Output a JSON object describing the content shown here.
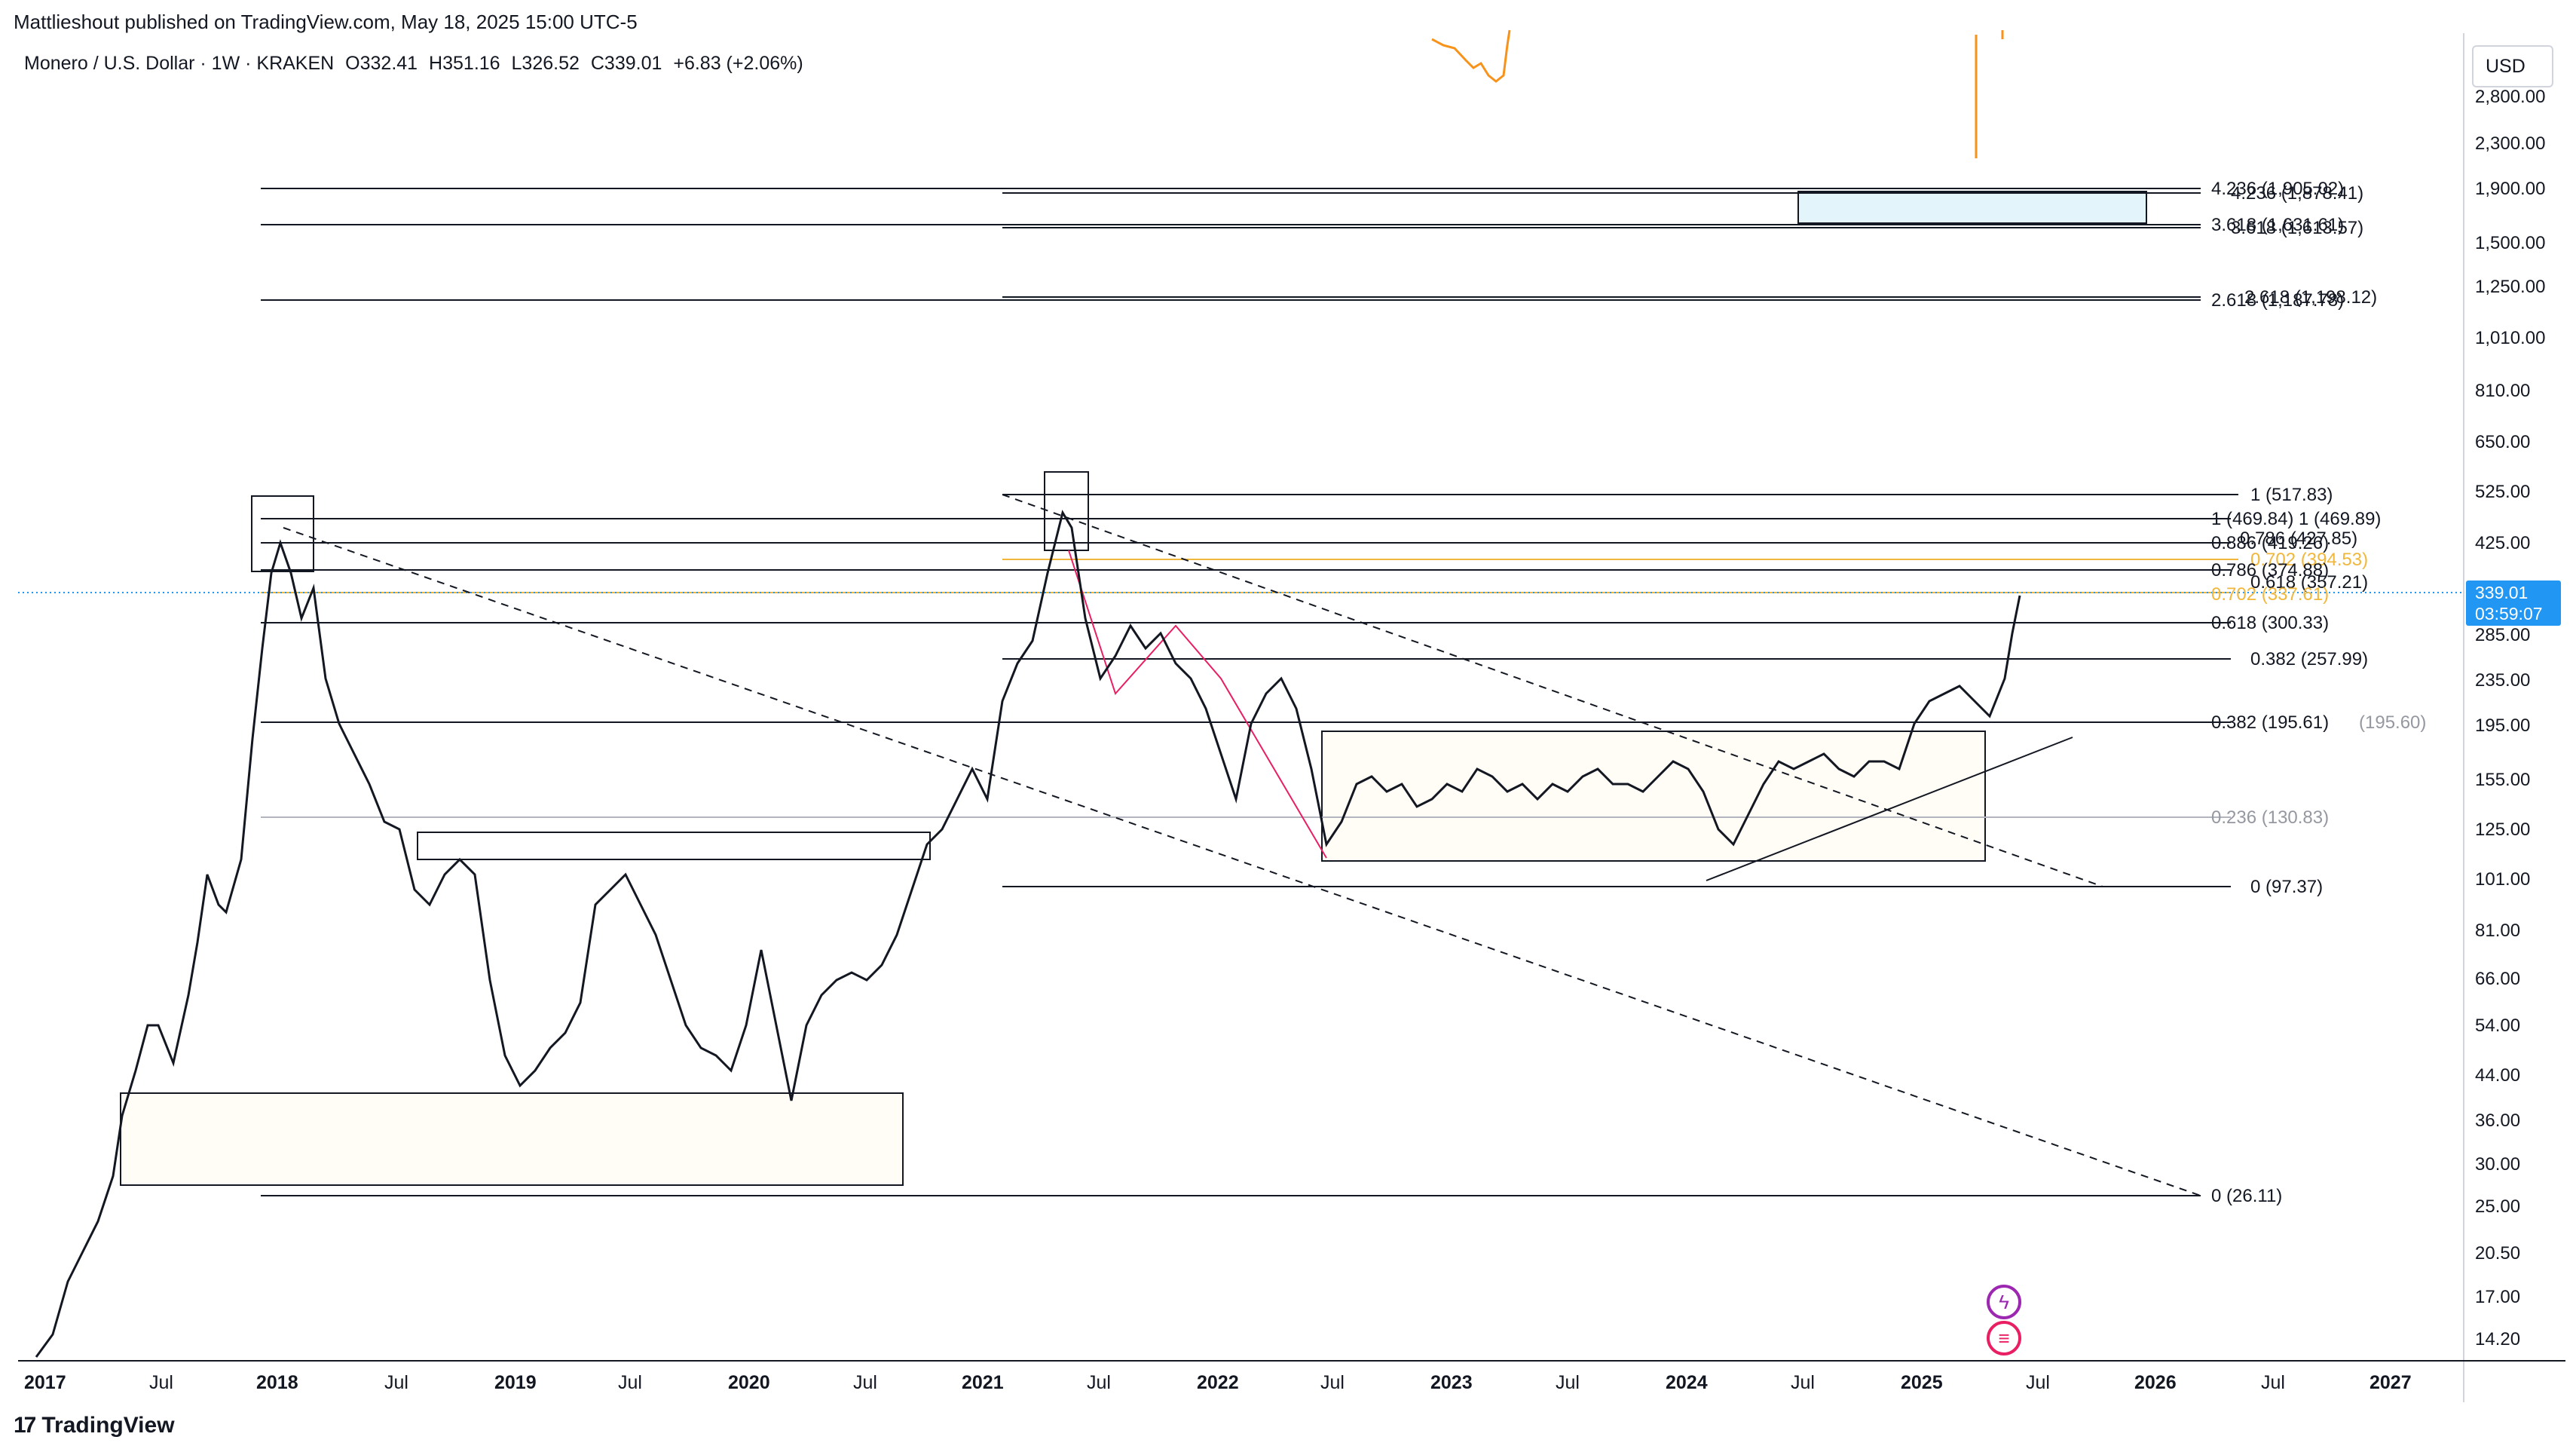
{
  "header": {
    "publisher_line": "Mattlieshout published on TradingView.com, May 18, 2025 15:00 UTC-5"
  },
  "symbol": {
    "title": "Monero / U.S. Dollar · 1W · KRAKEN",
    "open": "O332.41",
    "high": "H351.16",
    "low": "L326.52",
    "close": "C339.01",
    "change": "+6.83 (+2.06%)"
  },
  "price_axis": {
    "currency": "USD",
    "ticks": [
      "2,800.00",
      "2,300.00",
      "1,900.00",
      "1,500.00",
      "1,250.00",
      "1,010.00",
      "810.00",
      "650.00",
      "525.00",
      "425.00",
      "285.00",
      "235.00",
      "195.00",
      "155.00",
      "125.00",
      "101.00",
      "81.00",
      "66.00",
      "54.00",
      "44.00",
      "36.00",
      "30.00",
      "25.00",
      "20.50",
      "17.00",
      "14.20"
    ],
    "last_price": "339.01",
    "countdown": "03:59:07"
  },
  "time_axis": {
    "ticks": [
      "2017",
      "Jul",
      "2018",
      "Jul",
      "2019",
      "Jul",
      "2020",
      "Jul",
      "2021",
      "Jul",
      "2022",
      "Jul",
      "2023",
      "Jul",
      "2024",
      "Jul",
      "2025",
      "Jul",
      "2026",
      "Jul",
      "2027"
    ]
  },
  "fib_labels": [
    {
      "text": "4.236 (1,905.02)",
      "color": "#131722"
    },
    {
      "text": "4.236 (1,878.41)",
      "color": "#131722"
    },
    {
      "text": "3.618 (1,631.61)",
      "color": "#131722"
    },
    {
      "text": "3.618 (1,613.57)",
      "color": "#131722"
    },
    {
      "text": "2.618 (1,198.12)",
      "color": "#131722"
    },
    {
      "text": "2.618 (1,187.78)",
      "color": "#131722"
    },
    {
      "text": "1 (517.83)",
      "color": "#131722"
    },
    {
      "text": "1 (469.84)",
      "color": "#131722"
    },
    {
      "text": "1 (469.89)",
      "color": "#131722"
    },
    {
      "text": "0.886 (419.26)",
      "color": "#131722"
    },
    {
      "text": "0.786 (427.85)",
      "color": "#131722"
    },
    {
      "text": "0.702 (394.53)",
      "color": "#f0b73c"
    },
    {
      "text": "0.786 (374.88)",
      "color": "#131722"
    },
    {
      "text": "0.618 (357.21)",
      "color": "#131722"
    },
    {
      "text": "0.702 (337.61)",
      "color": "#f0b73c"
    },
    {
      "text": "0.618 (300.33)",
      "color": "#131722"
    },
    {
      "text": "0.382 (257.99)",
      "color": "#131722"
    },
    {
      "text": "0.382 (195.61)",
      "color": "#131722"
    },
    {
      "text": "(195.60)",
      "color": "#9598a1"
    },
    {
      "text": "0.236 (130.83)",
      "color": "#9598a1"
    },
    {
      "text": "0 (97.37)",
      "color": "#131722"
    },
    {
      "text": "0 (26.11)",
      "color": "#131722"
    }
  ],
  "footer": {
    "brand": "TradingView"
  },
  "icons": {
    "bolt": "lightning-icon",
    "flag": "us-flag-icon"
  },
  "colors": {
    "accent": "#2196f3",
    "fib_gold": "#f0b73c",
    "trend_red": "#e91e63",
    "orange_line": "#f7931a"
  }
}
